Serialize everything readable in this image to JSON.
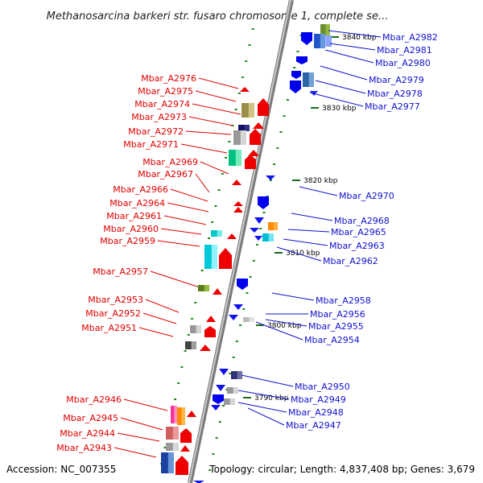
{
  "title": "Methanosarcina barkeri str. fusaro chromosome 1, complete se...",
  "footer": {
    "accession": "Accession: NC_007355",
    "summary": "Topology: circular; Length: 4,837,408 bp; Genes: 3,679"
  },
  "colors": {
    "backbone": "#9a9a9a",
    "left_label": "#e00000",
    "right_label": "#1010d0",
    "tick_green": "#1a8a1a",
    "scale_text": "#000000"
  },
  "scale_labels": [
    "3840 kbp",
    "3830 kbp",
    "3820 kbp",
    "3810 kbp",
    "3800 kbp",
    "3790 kbp"
  ],
  "left_genes": [
    "Mbar_A2976",
    "Mbar_A2975",
    "Mbar_A2974",
    "Mbar_A2973",
    "Mbar_A2972",
    "Mbar_A2971",
    "Mbar_A2969",
    "Mbar_A2967",
    "Mbar_A2966",
    "Mbar_A2964",
    "Mbar_A2961",
    "Mbar_A2960",
    "Mbar_A2959",
    "Mbar_A2957",
    "Mbar_A2953",
    "Mbar_A2952",
    "Mbar_A2951",
    "Mbar_A2946",
    "Mbar_A2945",
    "Mbar_A2944",
    "Mbar_A2943"
  ],
  "right_genes": [
    "Mbar_A2982",
    "Mbar_A2981",
    "Mbar_A2980",
    "Mbar_A2979",
    "Mbar_A2978",
    "Mbar_A2977",
    "Mbar_A2970",
    "Mbar_A2968",
    "Mbar_A2965",
    "Mbar_A2963",
    "Mbar_A2962",
    "Mbar_A2958",
    "Mbar_A2956",
    "Mbar_A2955",
    "Mbar_A2954",
    "Mbar_A2950",
    "Mbar_A2949",
    "Mbar_A2948",
    "Mbar_A2947"
  ]
}
